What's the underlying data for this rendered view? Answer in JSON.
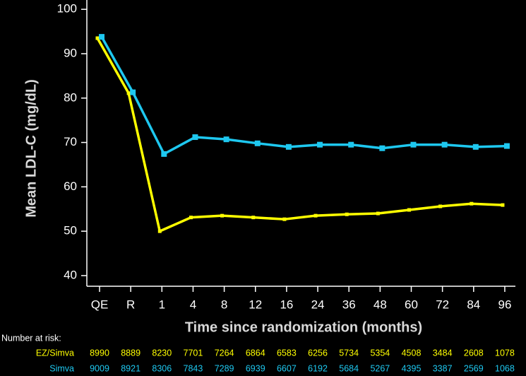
{
  "chart_data": {
    "type": "line",
    "x_label": "Time since randomization (months)",
    "y_label": "Mean LDL-C (mg/dL)",
    "categories": [
      "QE",
      "R",
      "1",
      "4",
      "8",
      "12",
      "16",
      "24",
      "36",
      "48",
      "60",
      "72",
      "84",
      "96"
    ],
    "ylim": [
      37.6,
      102.1
    ],
    "yticks": [
      40,
      50,
      60,
      70,
      80,
      90,
      100
    ],
    "risk_title": "Number at risk:",
    "series": [
      {
        "name": "EZ/Simva",
        "color": "#ffff00",
        "values": [
          93.5,
          81.1,
          50.0,
          53.1,
          53.5,
          53.1,
          52.7,
          53.5,
          53.8,
          54.0,
          54.8,
          55.6,
          56.2,
          55.9
        ],
        "at_risk": [
          8990,
          8889,
          8230,
          7701,
          7264,
          6864,
          6583,
          6256,
          5734,
          5354,
          4508,
          3484,
          2608,
          1078
        ]
      },
      {
        "name": "Simva",
        "color": "#1ec8f0",
        "values": [
          93.8,
          81.3,
          67.4,
          71.2,
          70.7,
          69.8,
          69.0,
          69.5,
          69.5,
          68.7,
          69.5,
          69.5,
          69.0,
          69.2
        ],
        "at_risk": [
          9009,
          8921,
          8306,
          7843,
          7289,
          6939,
          6607,
          6192,
          5684,
          5267,
          4395,
          3387,
          2569,
          1068
        ]
      }
    ]
  }
}
